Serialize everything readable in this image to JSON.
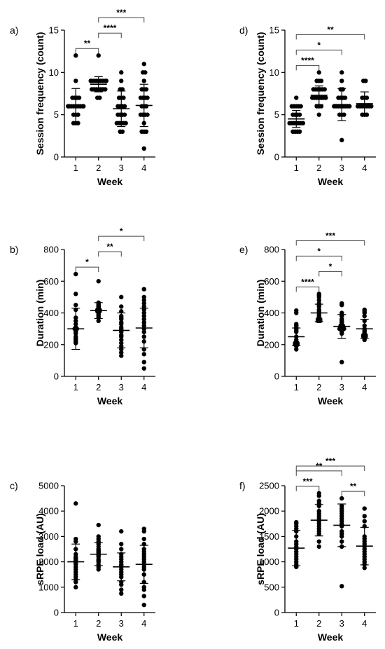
{
  "figure": {
    "background": "#ffffff",
    "ink_color": "#000000",
    "bracket_color": "#444444"
  },
  "chart_data": [
    {
      "panel": "a)",
      "type": "scatter",
      "xlabel": "Week",
      "ylabel": "Session frequency (count)",
      "categories": [
        "1",
        "2",
        "3",
        "4"
      ],
      "ylim": [
        0,
        15
      ],
      "yticks": [
        0,
        5,
        10,
        15
      ],
      "groups": [
        {
          "x": "1",
          "mean": 6.1,
          "sd": 2.0,
          "points": [
            4,
            4,
            4,
            5,
            5,
            5,
            6,
            6,
            6,
            6,
            6,
            6,
            6,
            6,
            6,
            7,
            7,
            7,
            7,
            9,
            12
          ]
        },
        {
          "x": "2",
          "mean": 8.6,
          "sd": 0.9,
          "points": [
            7,
            7,
            8,
            8,
            8,
            8,
            8,
            8,
            8,
            9,
            9,
            9,
            9,
            9,
            9,
            9,
            9,
            9,
            9,
            9,
            12
          ]
        },
        {
          "x": "3",
          "mean": 5.7,
          "sd": 2.1,
          "points": [
            3,
            3,
            4,
            4,
            4,
            4,
            4,
            5,
            5,
            5,
            5,
            6,
            6,
            6,
            6,
            7,
            7,
            7,
            8,
            8,
            9,
            10
          ]
        },
        {
          "x": "4",
          "mean": 6.1,
          "sd": 2.5,
          "points": [
            1,
            3,
            3,
            3,
            4,
            5,
            5,
            5,
            5,
            6,
            6,
            6,
            7,
            7,
            7,
            7,
            8,
            8,
            8,
            9,
            10,
            10,
            11
          ]
        }
      ],
      "significance": [
        {
          "from": "1",
          "to": "2",
          "label": "**"
        },
        {
          "from": "2",
          "to": "3",
          "label": "****"
        },
        {
          "from": "2",
          "to": "4",
          "label": "***"
        }
      ]
    },
    {
      "panel": "d)",
      "type": "scatter",
      "xlabel": "Week",
      "ylabel": "Session frequency (count)",
      "categories": [
        "1",
        "2",
        "3",
        "4"
      ],
      "ylim": [
        0,
        15
      ],
      "yticks": [
        0,
        5,
        10,
        15
      ],
      "groups": [
        {
          "x": "1",
          "mean": 4.5,
          "sd": 1.0,
          "points": [
            3,
            3,
            3,
            3,
            4,
            4,
            4,
            4,
            4,
            4,
            4,
            5,
            5,
            5,
            5,
            6,
            6,
            6,
            6,
            6,
            7
          ]
        },
        {
          "x": "2",
          "mean": 7.3,
          "sd": 1.1,
          "points": [
            5,
            6,
            6,
            6,
            7,
            7,
            7,
            7,
            7,
            7,
            7,
            8,
            8,
            8,
            8,
            8,
            8,
            9,
            9,
            9,
            10
          ]
        },
        {
          "x": "3",
          "mean": 6.2,
          "sd": 1.9,
          "points": [
            2,
            5,
            5,
            5,
            6,
            6,
            6,
            6,
            6,
            6,
            6,
            6,
            7,
            7,
            7,
            7,
            8,
            8,
            9,
            10
          ]
        },
        {
          "x": "4",
          "mean": 6.3,
          "sd": 1.4,
          "points": [
            5,
            5,
            5,
            6,
            6,
            6,
            6,
            6,
            6,
            6,
            7,
            7,
            7,
            9,
            9
          ]
        }
      ],
      "significance": [
        {
          "from": "1",
          "to": "2",
          "label": "****"
        },
        {
          "from": "1",
          "to": "3",
          "label": "*"
        },
        {
          "from": "1",
          "to": "4",
          "label": "**"
        }
      ]
    },
    {
      "panel": "b)",
      "type": "scatter",
      "xlabel": "Week",
      "ylabel": "Duration (min)",
      "categories": [
        "1",
        "2",
        "3",
        "4"
      ],
      "ylim": [
        0,
        800
      ],
      "yticks": [
        0,
        200,
        400,
        600,
        800
      ],
      "groups": [
        {
          "x": "1",
          "mean": 300,
          "sd": 130,
          "points": [
            210,
            215,
            220,
            230,
            240,
            250,
            270,
            280,
            290,
            295,
            300,
            300,
            310,
            330,
            350,
            370,
            420,
            450,
            520,
            645
          ]
        },
        {
          "x": "2",
          "mean": 415,
          "sd": 50,
          "points": [
            350,
            370,
            380,
            390,
            400,
            405,
            410,
            410,
            415,
            420,
            420,
            425,
            430,
            435,
            440,
            445,
            450,
            455,
            465,
            600
          ]
        },
        {
          "x": "3",
          "mean": 290,
          "sd": 110,
          "points": [
            130,
            150,
            170,
            190,
            210,
            230,
            250,
            260,
            280,
            290,
            300,
            310,
            330,
            340,
            360,
            370,
            380,
            410,
            440,
            500
          ]
        },
        {
          "x": "4",
          "mean": 305,
          "sd": 125,
          "points": [
            50,
            90,
            140,
            170,
            220,
            250,
            280,
            300,
            320,
            340,
            360,
            380,
            400,
            420,
            440,
            460,
            480,
            500,
            550
          ]
        }
      ],
      "significance": [
        {
          "from": "1",
          "to": "2",
          "label": "*"
        },
        {
          "from": "2",
          "to": "3",
          "label": "**"
        },
        {
          "from": "2",
          "to": "4",
          "label": "*"
        }
      ]
    },
    {
      "panel": "e)",
      "type": "scatter",
      "xlabel": "Week",
      "ylabel": "Duration (min)",
      "categories": [
        "1",
        "2",
        "3",
        "4"
      ],
      "ylim": [
        0,
        800
      ],
      "yticks": [
        0,
        200,
        400,
        600,
        800
      ],
      "groups": [
        {
          "x": "1",
          "mean": 250,
          "sd": 55,
          "points": [
            170,
            190,
            200,
            200,
            205,
            210,
            210,
            215,
            220,
            230,
            250,
            280,
            290,
            300,
            310,
            320,
            330,
            400,
            415
          ]
        },
        {
          "x": "2",
          "mean": 400,
          "sd": 55,
          "points": [
            350,
            350,
            355,
            360,
            360,
            365,
            370,
            380,
            390,
            400,
            410,
            420,
            440,
            450,
            460,
            480,
            500,
            510,
            520
          ]
        },
        {
          "x": "3",
          "mean": 315,
          "sd": 75,
          "points": [
            90,
            270,
            280,
            290,
            300,
            300,
            300,
            310,
            310,
            320,
            320,
            330,
            340,
            350,
            360,
            380,
            400,
            450,
            460
          ]
        },
        {
          "x": "4",
          "mean": 300,
          "sd": 60,
          "points": [
            230,
            240,
            250,
            250,
            260,
            260,
            265,
            270,
            280,
            290,
            300,
            320,
            350,
            380,
            400,
            410,
            420
          ]
        }
      ],
      "significance": [
        {
          "from": "1",
          "to": "2",
          "label": "****"
        },
        {
          "from": "1",
          "to": "3",
          "label": "*"
        },
        {
          "from": "1",
          "to": "4",
          "label": "***"
        },
        {
          "from": "2",
          "to": "3",
          "label": "*"
        }
      ]
    },
    {
      "panel": "c)",
      "type": "scatter",
      "xlabel": "Week",
      "ylabel": "sRPE load (AU)",
      "categories": [
        "1",
        "2",
        "3",
        "4"
      ],
      "ylim": [
        0,
        5000
      ],
      "yticks": [
        0,
        1000,
        2000,
        3000,
        4000,
        5000
      ],
      "groups": [
        {
          "x": "1",
          "mean": 2000,
          "sd": 700,
          "points": [
            1000,
            1200,
            1300,
            1400,
            1500,
            1600,
            1700,
            1800,
            1900,
            1950,
            2000,
            2050,
            2100,
            2150,
            2200,
            2300,
            2500,
            2800,
            2900,
            4300
          ]
        },
        {
          "x": "2",
          "mean": 2300,
          "sd": 450,
          "points": [
            1700,
            1800,
            1900,
            2000,
            2050,
            2100,
            2200,
            2250,
            2300,
            2350,
            2400,
            2450,
            2500,
            2600,
            2700,
            2800,
            2900,
            3000,
            3450
          ]
        },
        {
          "x": "3",
          "mean": 1800,
          "sd": 550,
          "points": [
            750,
            900,
            1100,
            1200,
            1400,
            1500,
            1600,
            1700,
            1800,
            1850,
            1900,
            2000,
            2100,
            2200,
            2300,
            2500,
            2700,
            3200
          ]
        },
        {
          "x": "4",
          "mean": 1900,
          "sd": 750,
          "points": [
            300,
            650,
            900,
            1000,
            1200,
            1500,
            1700,
            1800,
            1900,
            2000,
            2100,
            2200,
            2300,
            2400,
            2500,
            2700,
            2900,
            3200,
            3300
          ]
        }
      ],
      "significance": []
    },
    {
      "panel": "f)",
      "type": "scatter",
      "xlabel": "Week",
      "ylabel": "sRPE load (AU)",
      "categories": [
        "1",
        "2",
        "3",
        "4"
      ],
      "ylim": [
        0,
        2500
      ],
      "yticks": [
        0,
        500,
        1000,
        1500,
        2000,
        2500
      ],
      "groups": [
        {
          "x": "1",
          "mean": 1270,
          "sd": 350,
          "points": [
            900,
            920,
            950,
            1000,
            1050,
            1100,
            1150,
            1200,
            1250,
            1300,
            1350,
            1400,
            1500,
            1600,
            1650,
            1700,
            1750,
            1780
          ]
        },
        {
          "x": "2",
          "mean": 1820,
          "sd": 310,
          "points": [
            1300,
            1400,
            1550,
            1600,
            1650,
            1700,
            1750,
            1800,
            1850,
            1900,
            1950,
            2000,
            2100,
            2150,
            2200,
            2300,
            2350
          ]
        },
        {
          "x": "3",
          "mean": 1720,
          "sd": 420,
          "points": [
            520,
            1300,
            1400,
            1500,
            1550,
            1600,
            1700,
            1750,
            1800,
            1850,
            1900,
            1950,
            2000,
            2050,
            2100,
            2250
          ]
        },
        {
          "x": "4",
          "mean": 1310,
          "sd": 370,
          "points": [
            880,
            950,
            1000,
            1050,
            1100,
            1150,
            1200,
            1250,
            1300,
            1350,
            1400,
            1450,
            1500,
            1700,
            1800,
            1900,
            2050
          ]
        }
      ],
      "significance": [
        {
          "from": "1",
          "to": "2",
          "label": "***"
        },
        {
          "from": "1",
          "to": "3",
          "label": "**"
        },
        {
          "from": "1",
          "to": "4",
          "label": "***"
        },
        {
          "from": "3",
          "to": "4",
          "label": "**"
        }
      ]
    }
  ]
}
